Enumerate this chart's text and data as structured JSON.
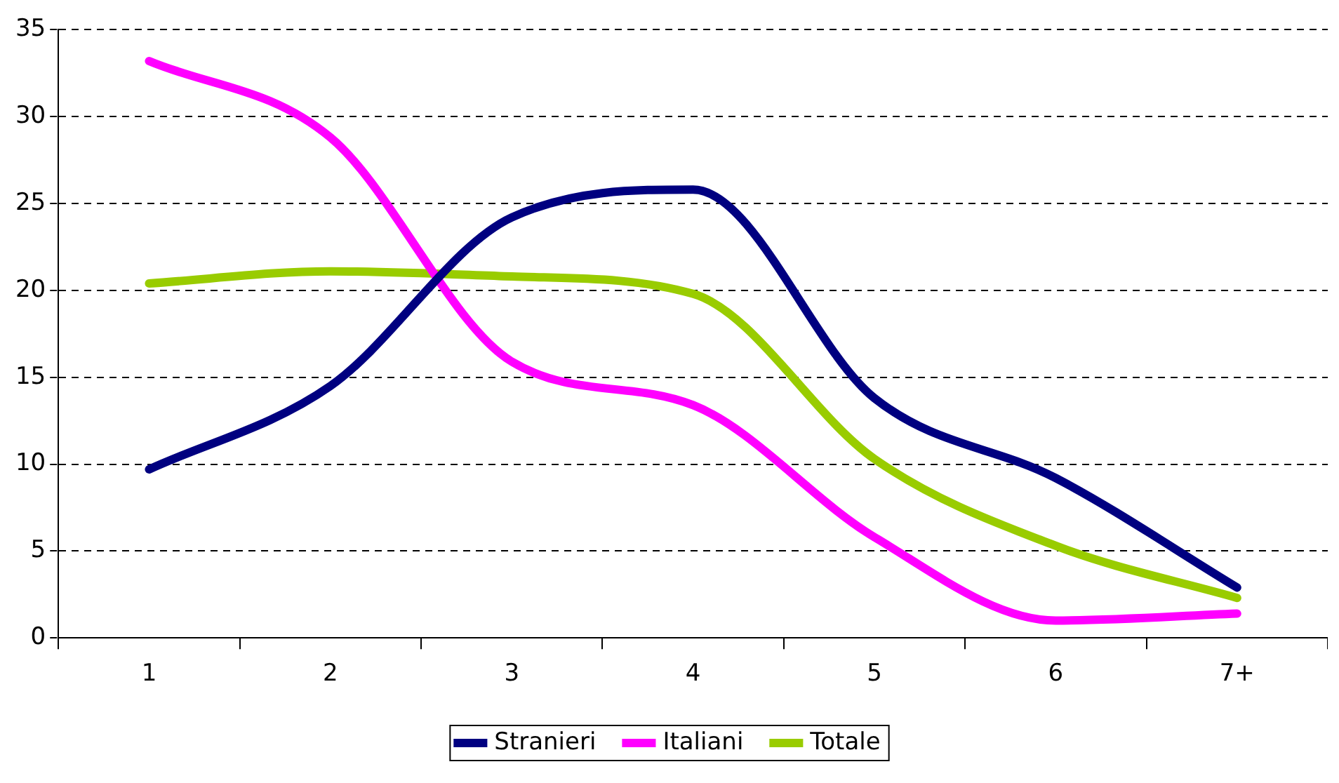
{
  "chart_data": {
    "type": "line",
    "categories": [
      "1",
      "2",
      "3",
      "4",
      "5",
      "6",
      "7+"
    ],
    "series": [
      {
        "name": "Stranieri",
        "color": "#000080",
        "values": [
          9.7,
          14.5,
          24.2,
          25.8,
          13.8,
          9.2,
          2.9
        ]
      },
      {
        "name": "Italiani",
        "color": "#ff00ff",
        "values": [
          33.2,
          28.8,
          15.9,
          13.4,
          5.8,
          1.0,
          1.4
        ]
      },
      {
        "name": "Totale",
        "color": "#99cc00",
        "values": [
          20.4,
          21.1,
          20.8,
          19.8,
          10.3,
          5.3,
          2.3
        ]
      }
    ],
    "ylim": [
      0,
      35
    ],
    "yticks": [
      0,
      5,
      10,
      15,
      20,
      25,
      30,
      35
    ],
    "grid": "y",
    "legend": "bottom",
    "marker": "none",
    "line_style": "solid"
  }
}
